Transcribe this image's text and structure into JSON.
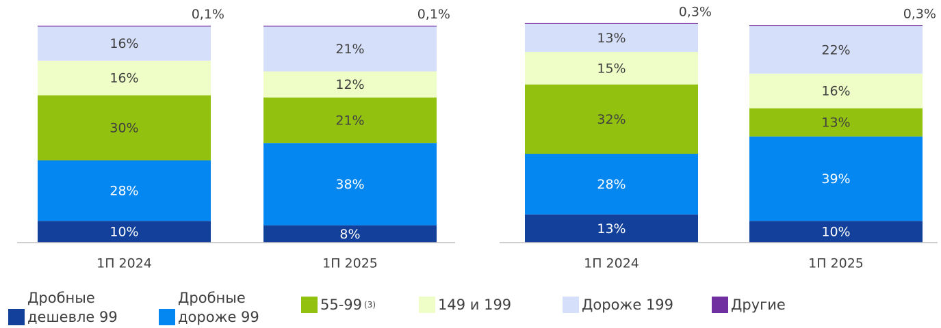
{
  "chart_data": [
    {
      "type": "stacked_bar",
      "categories": [
        "1П 2024",
        "1П 2025"
      ],
      "ylim": [
        0,
        100
      ],
      "series": [
        {
          "name": "Дробные дешевле 99",
          "color": "#12409a",
          "values": [
            10,
            8
          ],
          "value_labels": [
            "10%",
            "8%"
          ]
        },
        {
          "name": "Дробные дороже 99",
          "color": "#0587f2",
          "values": [
            28,
            38
          ],
          "value_labels": [
            "28%",
            "38%"
          ]
        },
        {
          "name": "55-99",
          "note": "(3)",
          "color": "#93c10f",
          "values": [
            30,
            21
          ],
          "value_labels": [
            "30%",
            "21%"
          ]
        },
        {
          "name": "149 и 199",
          "color": "#effdc6",
          "values": [
            16,
            12
          ],
          "value_labels": [
            "16%",
            "12%"
          ]
        },
        {
          "name": "Дороже 199",
          "color": "#d6dffa",
          "values": [
            16,
            21
          ],
          "value_labels": [
            "16%",
            "21%"
          ]
        },
        {
          "name": "Другие",
          "color": "#7030a0",
          "values": [
            0.1,
            0.1
          ],
          "value_labels": [
            "0,1%",
            "0,1%"
          ]
        }
      ]
    },
    {
      "type": "stacked_bar",
      "categories": [
        "1П 2024",
        "1П 2025"
      ],
      "ylim": [
        0,
        100
      ],
      "series": [
        {
          "values": [
            13,
            10
          ],
          "value_labels": [
            "13%",
            "10%"
          ]
        },
        {
          "values": [
            28,
            39
          ],
          "value_labels": [
            "28%",
            "39%"
          ]
        },
        {
          "values": [
            32,
            13
          ],
          "value_labels": [
            "32%",
            "13%"
          ]
        },
        {
          "values": [
            15,
            16
          ],
          "value_labels": [
            "15%",
            "16%"
          ]
        },
        {
          "values": [
            13,
            22
          ],
          "value_labels": [
            "13%",
            "22%"
          ]
        },
        {
          "values": [
            0.3,
            0.3
          ],
          "value_labels": [
            "0,3%",
            "0,3%"
          ]
        }
      ]
    }
  ]
}
